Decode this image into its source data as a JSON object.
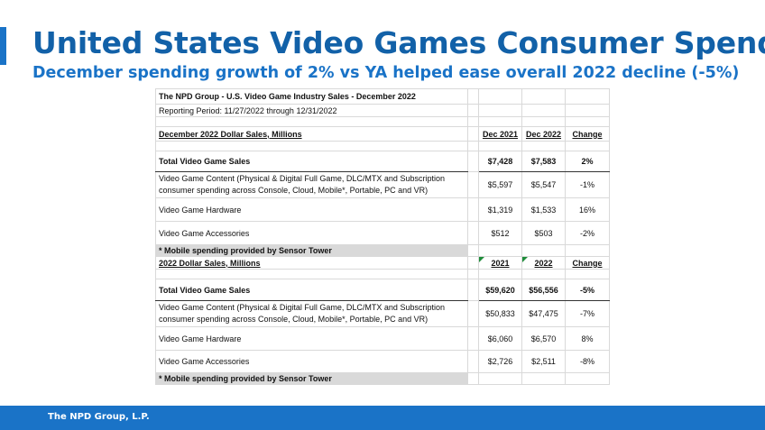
{
  "slide": {
    "title": "United States Video Games Consumer Spend",
    "subtitle": "December spending growth of 2% vs YA helped ease overall 2022 decline (-5%)",
    "footer": "The NPD Group, L.P.",
    "accent_color": "#1a73c7",
    "title_color": "#1261a8"
  },
  "table": {
    "title": "The NPD Group - U.S. Video Game Industry Sales - December 2022",
    "period": "Reporting Period: 11/27/2022 through 12/31/2022",
    "december": {
      "heading": "December 2022 Dollar Sales, Millions",
      "col1": "Dec 2021",
      "col2": "Dec 2022",
      "col3": "Change",
      "rows": [
        {
          "label": "Total Video Game Sales",
          "v1": "$7,428",
          "v2": "$7,583",
          "chg": "2%"
        },
        {
          "label": "Video Game Content (Physical & Digital Full Game, DLC/MTX and Subscription consumer spending across Console, Cloud, Mobile*, Portable, PC and VR)",
          "v1": "$5,597",
          "v2": "$5,547",
          "chg": "-1%"
        },
        {
          "label": "Video Game Hardware",
          "v1": "$1,319",
          "v2": "$1,533",
          "chg": "16%"
        },
        {
          "label": "Video Game Accessories",
          "v1": "$512",
          "v2": "$503",
          "chg": "-2%"
        }
      ],
      "note": "* Mobile spending provided by Sensor Tower"
    },
    "annual": {
      "heading": "2022 Dollar Sales, Millions",
      "col1": "2021",
      "col2": "2022",
      "col3": "Change",
      "rows": [
        {
          "label": "Total Video Game Sales",
          "v1": "$59,620",
          "v2": "$56,556",
          "chg": "-5%"
        },
        {
          "label": "Video Game Content (Physical & Digital Full Game, DLC/MTX and Subscription consumer spending across Console, Cloud, Mobile*, Portable, PC and VR)",
          "v1": "$50,833",
          "v2": "$47,475",
          "chg": "-7%"
        },
        {
          "label": "Video Game Hardware",
          "v1": "$6,060",
          "v2": "$6,570",
          "chg": "8%"
        },
        {
          "label": "Video Game Accessories",
          "v1": "$2,726",
          "v2": "$2,511",
          "chg": "-8%"
        }
      ],
      "note": "* Mobile spending provided by Sensor Tower"
    }
  }
}
